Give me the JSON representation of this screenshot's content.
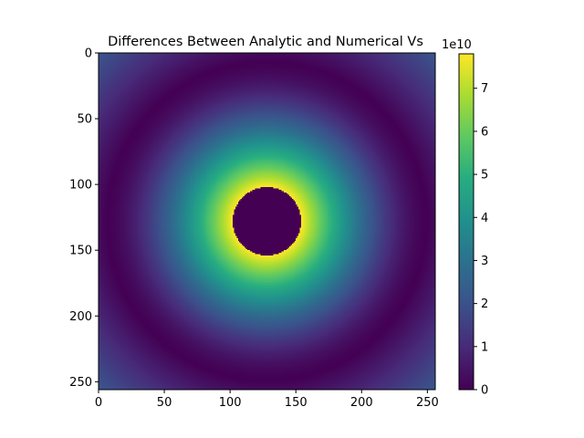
{
  "chart_data": {
    "type": "heatmap",
    "title": "Differences Between Analytic and Numerical Vs",
    "xlabel": "",
    "ylabel": "",
    "xlim": [
      0,
      256
    ],
    "ylim": [
      256,
      0
    ],
    "x_ticks": [
      0,
      50,
      100,
      150,
      200,
      250
    ],
    "y_ticks": [
      0,
      50,
      100,
      150,
      200,
      250
    ],
    "grid": false,
    "colormap": "viridis",
    "colorbar": {
      "range": [
        0,
        7.8
      ],
      "ticks": [
        0,
        1,
        2,
        3,
        4,
        5,
        6,
        7
      ],
      "multiplier_label": "1e10"
    },
    "features": {
      "center": [
        128,
        128
      ],
      "zero_disk_radius": 26,
      "peak_value": 7.8,
      "peak_radius": 26,
      "dark_ring_radius": 122,
      "corner_value": 2.0
    }
  }
}
